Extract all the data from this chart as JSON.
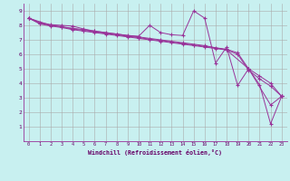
{
  "xlabel": "Windchill (Refroidissement éolien,°C)",
  "background_color": "#c8f0f0",
  "line_color": "#993399",
  "xlim": [
    -0.5,
    23.5
  ],
  "ylim": [
    0,
    9.5
  ],
  "xticks": [
    0,
    1,
    2,
    3,
    4,
    5,
    6,
    7,
    8,
    9,
    10,
    11,
    12,
    13,
    14,
    15,
    16,
    17,
    18,
    19,
    20,
    21,
    22,
    23
  ],
  "yticks": [
    1,
    2,
    3,
    4,
    5,
    6,
    7,
    8,
    9
  ],
  "series1": [
    [
      0,
      8.5
    ],
    [
      1,
      8.2
    ],
    [
      2,
      8.05
    ],
    [
      3,
      8.0
    ],
    [
      4,
      7.95
    ],
    [
      5,
      7.75
    ],
    [
      6,
      7.6
    ],
    [
      7,
      7.5
    ],
    [
      8,
      7.4
    ],
    [
      9,
      7.3
    ],
    [
      10,
      7.25
    ],
    [
      11,
      8.0
    ],
    [
      12,
      7.5
    ],
    [
      13,
      7.35
    ],
    [
      14,
      7.3
    ],
    [
      15,
      9.0
    ],
    [
      16,
      8.5
    ],
    [
      17,
      5.4
    ],
    [
      18,
      6.5
    ],
    [
      19,
      3.85
    ],
    [
      20,
      5.0
    ],
    [
      21,
      3.9
    ],
    [
      22,
      1.2
    ],
    [
      23,
      3.1
    ]
  ],
  "series2": [
    [
      0,
      8.5
    ],
    [
      1,
      8.15
    ],
    [
      2,
      8.0
    ],
    [
      3,
      7.9
    ],
    [
      4,
      7.75
    ],
    [
      5,
      7.65
    ],
    [
      6,
      7.55
    ],
    [
      7,
      7.45
    ],
    [
      8,
      7.35
    ],
    [
      9,
      7.25
    ],
    [
      10,
      7.15
    ],
    [
      11,
      7.05
    ],
    [
      12,
      6.95
    ],
    [
      13,
      6.85
    ],
    [
      14,
      6.75
    ],
    [
      15,
      6.65
    ],
    [
      16,
      6.55
    ],
    [
      17,
      6.45
    ],
    [
      18,
      6.35
    ],
    [
      19,
      6.1
    ],
    [
      20,
      5.0
    ],
    [
      21,
      4.5
    ],
    [
      22,
      4.0
    ],
    [
      23,
      3.1
    ]
  ],
  "series3": [
    [
      0,
      8.5
    ],
    [
      1,
      8.1
    ],
    [
      2,
      7.95
    ],
    [
      3,
      7.85
    ],
    [
      4,
      7.7
    ],
    [
      5,
      7.6
    ],
    [
      6,
      7.5
    ],
    [
      7,
      7.4
    ],
    [
      8,
      7.3
    ],
    [
      9,
      7.2
    ],
    [
      10,
      7.1
    ],
    [
      11,
      7.0
    ],
    [
      12,
      6.9
    ],
    [
      13,
      6.8
    ],
    [
      14,
      6.7
    ],
    [
      15,
      6.6
    ],
    [
      16,
      6.5
    ],
    [
      17,
      6.4
    ],
    [
      18,
      6.3
    ],
    [
      19,
      6.0
    ],
    [
      20,
      4.9
    ],
    [
      21,
      4.3
    ],
    [
      22,
      3.8
    ],
    [
      23,
      3.1
    ]
  ],
  "series4": [
    [
      0,
      8.5
    ],
    [
      2,
      8.0
    ],
    [
      4,
      7.8
    ],
    [
      6,
      7.6
    ],
    [
      8,
      7.4
    ],
    [
      10,
      7.2
    ],
    [
      12,
      7.0
    ],
    [
      14,
      6.8
    ],
    [
      16,
      6.6
    ],
    [
      18,
      6.3
    ],
    [
      20,
      5.0
    ],
    [
      22,
      2.5
    ],
    [
      23,
      3.1
    ]
  ]
}
